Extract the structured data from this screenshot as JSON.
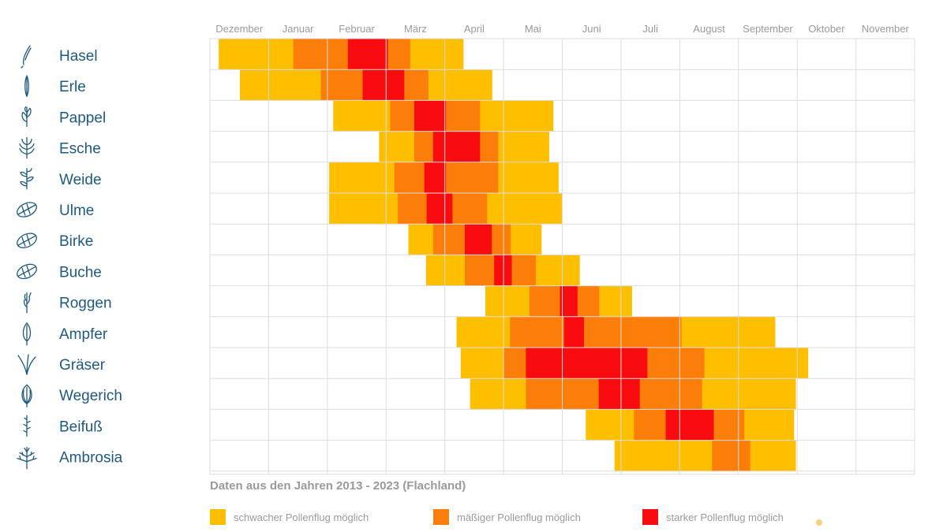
{
  "colors": {
    "weak": "#fdbf00",
    "moderate": "#fb7d0a",
    "strong": "#f90c10",
    "plant_text": "#1e5a80",
    "grid": "#dddddd"
  },
  "chart_data": {
    "type": "timeline",
    "title": "",
    "subtitle": "Daten aus den Jahren 2013 - 2023 (Flachland)",
    "months": [
      "Dezember",
      "Januar",
      "Februar",
      "März",
      "April",
      "Mai",
      "Juni",
      "Juli",
      "August",
      "September",
      "Oktober",
      "November"
    ],
    "x_unit": "months since 1 December",
    "xlim": [
      0,
      12
    ],
    "legend": [
      {
        "level": "weak",
        "label": "schwacher Pollenflug möglich"
      },
      {
        "level": "moderate",
        "label": "mäßiger Pollenflug möglich"
      },
      {
        "level": "strong",
        "label": "starker Pollenflug möglich"
      }
    ],
    "series": [
      {
        "plant": "Hasel",
        "icon": "hazel-catkin-icon",
        "segments": [
          {
            "start": 0.15,
            "end": 1.42,
            "level": "weak"
          },
          {
            "start": 1.42,
            "end": 2.35,
            "level": "moderate"
          },
          {
            "start": 2.35,
            "end": 3.03,
            "level": "strong"
          },
          {
            "start": 3.03,
            "end": 3.41,
            "level": "moderate"
          },
          {
            "start": 3.41,
            "end": 4.31,
            "level": "weak"
          }
        ]
      },
      {
        "plant": "Erle",
        "icon": "alder-catkin-icon",
        "segments": [
          {
            "start": 0.51,
            "end": 1.89,
            "level": "weak"
          },
          {
            "start": 1.89,
            "end": 2.6,
            "level": "moderate"
          },
          {
            "start": 2.6,
            "end": 3.31,
            "level": "strong"
          },
          {
            "start": 3.31,
            "end": 3.72,
            "level": "moderate"
          },
          {
            "start": 3.72,
            "end": 4.8,
            "level": "weak"
          }
        ]
      },
      {
        "plant": "Pappel",
        "icon": "poplar-leaf-icon",
        "segments": [
          {
            "start": 2.1,
            "end": 3.07,
            "level": "weak"
          },
          {
            "start": 3.07,
            "end": 3.48,
            "level": "moderate"
          },
          {
            "start": 3.48,
            "end": 4.02,
            "level": "strong"
          },
          {
            "start": 4.02,
            "end": 4.6,
            "level": "moderate"
          },
          {
            "start": 4.6,
            "end": 5.84,
            "level": "weak"
          }
        ]
      },
      {
        "plant": "Esche",
        "icon": "ash-leaf-icon",
        "segments": [
          {
            "start": 2.88,
            "end": 3.48,
            "level": "weak"
          },
          {
            "start": 3.48,
            "end": 3.8,
            "level": "moderate"
          },
          {
            "start": 3.8,
            "end": 4.6,
            "level": "strong"
          },
          {
            "start": 4.6,
            "end": 4.91,
            "level": "moderate"
          },
          {
            "start": 4.91,
            "end": 5.77,
            "level": "weak"
          }
        ]
      },
      {
        "plant": "Weide",
        "icon": "willow-branch-icon",
        "segments": [
          {
            "start": 2.03,
            "end": 3.14,
            "level": "weak"
          },
          {
            "start": 3.14,
            "end": 3.65,
            "level": "moderate"
          },
          {
            "start": 3.65,
            "end": 4.02,
            "level": "strong"
          },
          {
            "start": 4.02,
            "end": 4.91,
            "level": "moderate"
          },
          {
            "start": 4.91,
            "end": 5.93,
            "level": "weak"
          }
        ]
      },
      {
        "plant": "Ulme",
        "icon": "elm-leaf-icon",
        "segments": [
          {
            "start": 2.03,
            "end": 3.2,
            "level": "weak"
          },
          {
            "start": 3.2,
            "end": 3.69,
            "level": "moderate"
          },
          {
            "start": 3.69,
            "end": 4.13,
            "level": "strong"
          },
          {
            "start": 4.13,
            "end": 4.72,
            "level": "moderate"
          },
          {
            "start": 4.72,
            "end": 5.99,
            "level": "weak"
          }
        ]
      },
      {
        "plant": "Birke",
        "icon": "birch-leaf-icon",
        "segments": [
          {
            "start": 3.38,
            "end": 3.8,
            "level": "weak"
          },
          {
            "start": 3.8,
            "end": 4.34,
            "level": "moderate"
          },
          {
            "start": 4.34,
            "end": 4.8,
            "level": "strong"
          },
          {
            "start": 4.8,
            "end": 5.12,
            "level": "moderate"
          },
          {
            "start": 5.12,
            "end": 5.64,
            "level": "weak"
          }
        ]
      },
      {
        "plant": "Buche",
        "icon": "beech-leaf-icon",
        "segments": [
          {
            "start": 3.68,
            "end": 4.34,
            "level": "weak"
          },
          {
            "start": 4.34,
            "end": 4.84,
            "level": "moderate"
          },
          {
            "start": 4.84,
            "end": 5.14,
            "level": "strong"
          },
          {
            "start": 5.14,
            "end": 5.55,
            "level": "moderate"
          },
          {
            "start": 5.55,
            "end": 6.29,
            "level": "weak"
          }
        ]
      },
      {
        "plant": "Roggen",
        "icon": "rye-ear-icon",
        "segments": [
          {
            "start": 4.69,
            "end": 5.44,
            "level": "weak"
          },
          {
            "start": 5.44,
            "end": 5.96,
            "level": "moderate"
          },
          {
            "start": 5.96,
            "end": 6.26,
            "level": "strong"
          },
          {
            "start": 6.26,
            "end": 6.63,
            "level": "moderate"
          },
          {
            "start": 6.63,
            "end": 7.18,
            "level": "weak"
          }
        ]
      },
      {
        "plant": "Ampfer",
        "icon": "sorrel-leaf-icon",
        "segments": [
          {
            "start": 4.2,
            "end": 5.11,
            "level": "weak"
          },
          {
            "start": 5.11,
            "end": 6.03,
            "level": "moderate"
          },
          {
            "start": 6.03,
            "end": 6.37,
            "level": "strong"
          },
          {
            "start": 6.37,
            "end": 8.03,
            "level": "moderate"
          },
          {
            "start": 8.03,
            "end": 9.62,
            "level": "weak"
          }
        ]
      },
      {
        "plant": "Gräser",
        "icon": "grass-icon",
        "segments": [
          {
            "start": 4.27,
            "end": 5.0,
            "level": "weak"
          },
          {
            "start": 5.0,
            "end": 5.38,
            "level": "moderate"
          },
          {
            "start": 5.38,
            "end": 7.45,
            "level": "strong"
          },
          {
            "start": 7.45,
            "end": 8.42,
            "level": "moderate"
          },
          {
            "start": 8.42,
            "end": 10.18,
            "level": "weak"
          }
        ]
      },
      {
        "plant": "Wegerich",
        "icon": "plantain-leaf-icon",
        "segments": [
          {
            "start": 4.43,
            "end": 5.38,
            "level": "weak"
          },
          {
            "start": 5.38,
            "end": 6.62,
            "level": "moderate"
          },
          {
            "start": 6.62,
            "end": 7.32,
            "level": "strong"
          },
          {
            "start": 7.32,
            "end": 8.38,
            "level": "moderate"
          },
          {
            "start": 8.38,
            "end": 9.97,
            "level": "weak"
          }
        ]
      },
      {
        "plant": "Beifuß",
        "icon": "mugwort-icon",
        "segments": [
          {
            "start": 6.4,
            "end": 7.22,
            "level": "weak"
          },
          {
            "start": 7.22,
            "end": 7.76,
            "level": "moderate"
          },
          {
            "start": 7.76,
            "end": 8.58,
            "level": "strong"
          },
          {
            "start": 8.58,
            "end": 9.1,
            "level": "moderate"
          },
          {
            "start": 9.1,
            "end": 9.94,
            "level": "weak"
          }
        ]
      },
      {
        "plant": "Ambrosia",
        "icon": "ragweed-icon",
        "segments": [
          {
            "start": 6.89,
            "end": 8.55,
            "level": "weak"
          },
          {
            "start": 8.55,
            "end": 9.2,
            "level": "moderate"
          },
          {
            "start": 9.2,
            "end": 9.97,
            "level": "weak"
          }
        ]
      }
    ]
  }
}
